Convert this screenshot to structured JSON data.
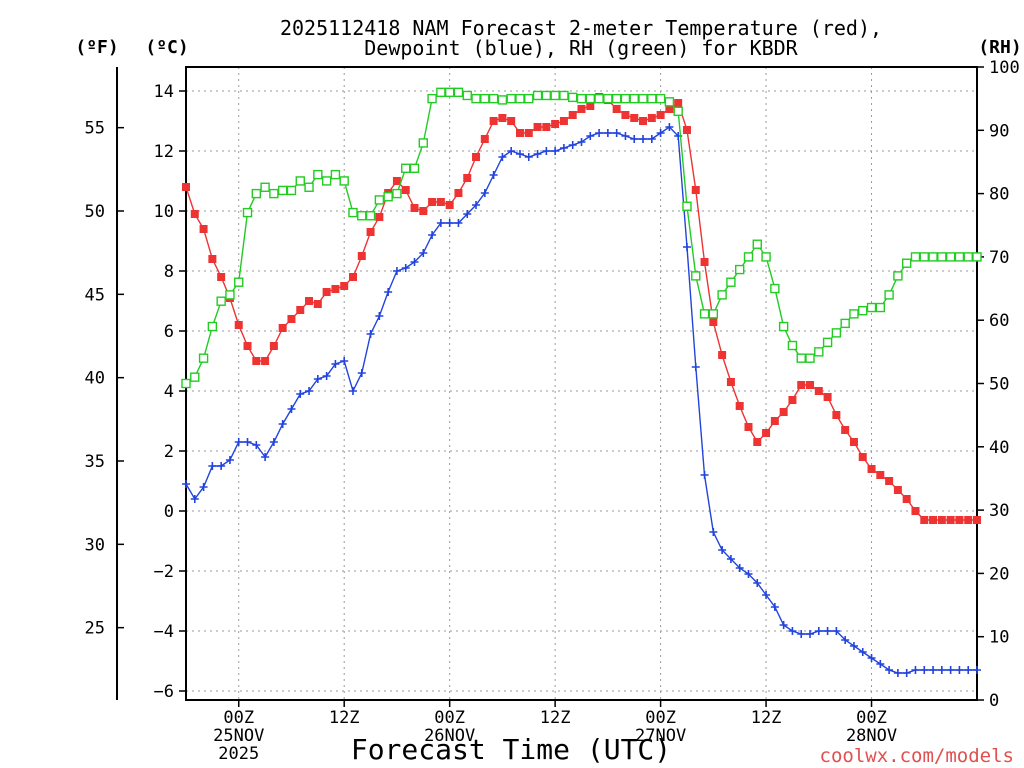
{
  "chart_data": {
    "type": "line",
    "title_line1": "2025112418 NAM Forecast 2-meter Temperature (red),",
    "title_line2": "Dewpoint (blue), RH (green) for KBDR",
    "unit_f": "(ºF)",
    "unit_c": "(ºC)",
    "unit_rh": "(RH)",
    "xlabel": "Forecast Time (UTC)",
    "watermark": "coolwx.com/models",
    "x_range": [
      -6,
      84
    ],
    "yc_range": [
      -6.3,
      14.8
    ],
    "rh_range": [
      0,
      100
    ],
    "c_ticks": [
      14,
      12,
      10,
      8,
      6,
      4,
      2,
      0,
      -2,
      -4,
      -6
    ],
    "f_ticks": [
      55,
      50,
      45,
      40,
      35,
      30,
      25
    ],
    "rh_ticks": [
      100,
      90,
      80,
      70,
      60,
      50,
      40,
      30,
      20,
      10,
      0
    ],
    "x_ticks": [
      {
        "x": 0,
        "lines": [
          "00Z",
          "25NOV",
          "2025"
        ]
      },
      {
        "x": 12,
        "lines": [
          "12Z"
        ]
      },
      {
        "x": 24,
        "lines": [
          "00Z",
          "26NOV"
        ]
      },
      {
        "x": 36,
        "lines": [
          "12Z"
        ]
      },
      {
        "x": 48,
        "lines": [
          "00Z",
          "27NOV"
        ]
      },
      {
        "x": 60,
        "lines": [
          "12Z"
        ]
      },
      {
        "x": 72,
        "lines": [
          "00Z",
          "28NOV"
        ]
      }
    ],
    "colors": {
      "temperature": "#ee3333",
      "dewpoint": "#2244dd",
      "rh": "#22cc22"
    },
    "series": [
      {
        "name": "Temperature (°C)",
        "axis": "c",
        "marker": "filled-square",
        "x": [
          -6,
          -5,
          -4,
          -3,
          -2,
          -1,
          0,
          1,
          2,
          3,
          4,
          5,
          6,
          7,
          8,
          9,
          10,
          11,
          12,
          13,
          14,
          15,
          16,
          17,
          18,
          19,
          20,
          21,
          22,
          23,
          24,
          25,
          26,
          27,
          28,
          29,
          30,
          31,
          32,
          33,
          34,
          35,
          36,
          37,
          38,
          39,
          40,
          41,
          42,
          43,
          44,
          45,
          46,
          47,
          48,
          49,
          50,
          51,
          52,
          53,
          54,
          55,
          56,
          57,
          58,
          59,
          60,
          61,
          62,
          63,
          64,
          65,
          66,
          67,
          68,
          69,
          70,
          71,
          72,
          73,
          74,
          75,
          76,
          77,
          78,
          79,
          80,
          81,
          82,
          83,
          84
        ],
        "values": [
          10.8,
          9.9,
          9.4,
          8.4,
          7.8,
          7.1,
          6.2,
          5.5,
          5.0,
          5.0,
          5.5,
          6.1,
          6.4,
          6.7,
          7.0,
          6.9,
          7.3,
          7.4,
          7.5,
          7.8,
          8.5,
          9.3,
          9.8,
          10.6,
          11.0,
          10.7,
          10.1,
          10.0,
          10.3,
          10.3,
          10.2,
          10.6,
          11.1,
          11.8,
          12.4,
          13.0,
          13.1,
          13.0,
          12.6,
          12.6,
          12.8,
          12.8,
          12.9,
          13.0,
          13.2,
          13.4,
          13.5,
          13.8,
          13.7,
          13.4,
          13.2,
          13.1,
          13.0,
          13.1,
          13.2,
          13.4,
          13.6,
          12.7,
          10.7,
          8.3,
          6.3,
          5.2,
          4.3,
          3.5,
          2.8,
          2.3,
          2.6,
          3.0,
          3.3,
          3.7,
          4.2,
          4.2,
          4.0,
          3.8,
          3.2,
          2.7,
          2.3,
          1.8,
          1.4,
          1.2,
          1.0,
          0.7,
          0.4,
          0.0,
          -0.3,
          -0.3,
          -0.3,
          -0.3,
          -0.3,
          -0.3,
          -0.3
        ]
      },
      {
        "name": "Dewpoint (°C)",
        "axis": "c",
        "marker": "plus",
        "x": [
          -6,
          -5,
          -4,
          -3,
          -2,
          -1,
          0,
          1,
          2,
          3,
          4,
          5,
          6,
          7,
          8,
          9,
          10,
          11,
          12,
          13,
          14,
          15,
          16,
          17,
          18,
          19,
          20,
          21,
          22,
          23,
          24,
          25,
          26,
          27,
          28,
          29,
          30,
          31,
          32,
          33,
          34,
          35,
          36,
          37,
          38,
          39,
          40,
          41,
          42,
          43,
          44,
          45,
          46,
          47,
          48,
          49,
          50,
          51,
          52,
          53,
          54,
          55,
          56,
          57,
          58,
          59,
          60,
          61,
          62,
          63,
          64,
          65,
          66,
          67,
          68,
          69,
          70,
          71,
          72,
          73,
          74,
          75,
          76,
          77,
          78,
          79,
          80,
          81,
          82,
          83,
          84
        ],
        "values": [
          0.9,
          0.4,
          0.8,
          1.5,
          1.5,
          1.7,
          2.3,
          2.3,
          2.2,
          1.8,
          2.3,
          2.9,
          3.4,
          3.9,
          4.0,
          4.4,
          4.5,
          4.9,
          5.0,
          4.0,
          4.6,
          5.9,
          6.5,
          7.3,
          8.0,
          8.1,
          8.3,
          8.6,
          9.2,
          9.6,
          9.6,
          9.6,
          9.9,
          10.2,
          10.6,
          11.2,
          11.8,
          12.0,
          11.9,
          11.8,
          11.9,
          12.0,
          12.0,
          12.1,
          12.2,
          12.3,
          12.5,
          12.6,
          12.6,
          12.6,
          12.5,
          12.4,
          12.4,
          12.4,
          12.6,
          12.8,
          12.5,
          8.8,
          4.8,
          1.2,
          -0.7,
          -1.3,
          -1.6,
          -1.9,
          -2.1,
          -2.4,
          -2.8,
          -3.2,
          -3.8,
          -4.0,
          -4.1,
          -4.1,
          -4.0,
          -4.0,
          -4.0,
          -4.3,
          -4.5,
          -4.7,
          -4.9,
          -5.1,
          -5.3,
          -5.4,
          -5.4,
          -5.3,
          -5.3,
          -5.3,
          -5.3,
          -5.3,
          -5.3,
          -5.3,
          -5.3
        ]
      },
      {
        "name": "RH (%)",
        "axis": "rh",
        "marker": "open-square",
        "x": [
          -6,
          -5,
          -4,
          -3,
          -2,
          -1,
          0,
          1,
          2,
          3,
          4,
          5,
          6,
          7,
          8,
          9,
          10,
          11,
          12,
          13,
          14,
          15,
          16,
          17,
          18,
          19,
          20,
          21,
          22,
          23,
          24,
          25,
          26,
          27,
          28,
          29,
          30,
          31,
          32,
          33,
          34,
          35,
          36,
          37,
          38,
          39,
          40,
          41,
          42,
          43,
          44,
          45,
          46,
          47,
          48,
          49,
          50,
          51,
          52,
          53,
          54,
          55,
          56,
          57,
          58,
          59,
          60,
          61,
          62,
          63,
          64,
          65,
          66,
          67,
          68,
          69,
          70,
          71,
          72,
          73,
          74,
          75,
          76,
          77,
          78,
          79,
          80,
          81,
          82,
          83,
          84
        ],
        "values": [
          50,
          51,
          54,
          59,
          63,
          64,
          66,
          77,
          80,
          81,
          80,
          80.5,
          80.5,
          82,
          81,
          83,
          82,
          83,
          82,
          77,
          76.5,
          76.5,
          79,
          79.5,
          80,
          84,
          84,
          88,
          95,
          96,
          96,
          96,
          95.5,
          95,
          95,
          95,
          94.8,
          95,
          95,
          95,
          95.5,
          95.5,
          95.5,
          95.5,
          95.2,
          95,
          95,
          95,
          95,
          95,
          95,
          95,
          95,
          95,
          95,
          94.5,
          93,
          78,
          67,
          61,
          61,
          64,
          66,
          68,
          70,
          72,
          70,
          65,
          59,
          56,
          54,
          54,
          55,
          56.5,
          58,
          59.5,
          61,
          61.5,
          62,
          62,
          64,
          67,
          69,
          70,
          70,
          70,
          70,
          70,
          70,
          70,
          70
        ]
      }
    ]
  }
}
